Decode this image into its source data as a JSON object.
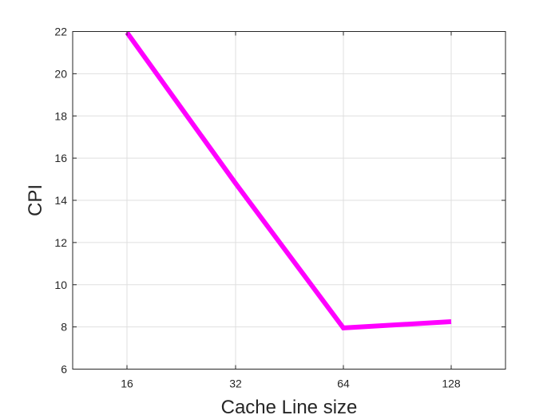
{
  "chart_data": {
    "type": "line",
    "title": "",
    "xlabel": "Cache Line size",
    "ylabel": "CPI",
    "x_categories": [
      "16",
      "32",
      "64",
      "128"
    ],
    "series": [
      {
        "values": [
          21.95,
          14.8,
          7.95,
          8.25
        ],
        "color": "#ff00ff"
      }
    ],
    "ylim": [
      6,
      22
    ],
    "yticks": [
      6,
      8,
      10,
      12,
      14,
      16,
      18,
      20,
      22
    ],
    "grid": true,
    "box": true
  }
}
